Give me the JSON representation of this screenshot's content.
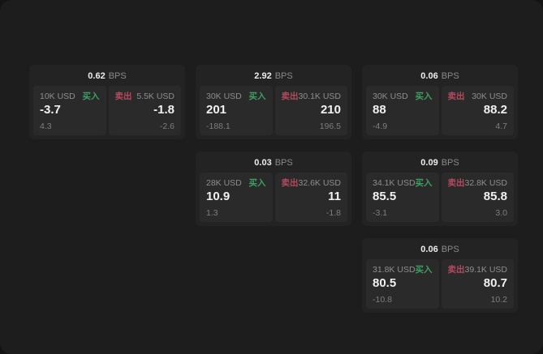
{
  "labels": {
    "buy": "买入",
    "sell": "卖出",
    "bps_unit": "BPS"
  },
  "colors": {
    "buy_accent": "#3f9e63",
    "sell_accent": "#b54a5e",
    "window_bg": "#1d1d1d",
    "card_bg": "#232323",
    "tile_bg": "#2a2a2b"
  },
  "cards": [
    {
      "row": 1,
      "col": 1,
      "bps": "0.62",
      "buy": {
        "amount": "10K USD",
        "price": "-3.7",
        "delta": "4.3"
      },
      "sell": {
        "amount": "5.5K USD",
        "price": "-1.8",
        "delta": "-2.6"
      }
    },
    {
      "row": 1,
      "col": 2,
      "bps": "2.92",
      "buy": {
        "amount": "30K USD",
        "price": "201",
        "delta": "-188.1"
      },
      "sell": {
        "amount": "30.1K USD",
        "price": "210",
        "delta": "196.5"
      }
    },
    {
      "row": 1,
      "col": 3,
      "bps": "0.06",
      "buy": {
        "amount": "30K USD",
        "price": "88",
        "delta": "-4.9"
      },
      "sell": {
        "amount": "30K USD",
        "price": "88.2",
        "delta": "4.7"
      }
    },
    {
      "row": 2,
      "col": 2,
      "bps": "0.03",
      "buy": {
        "amount": "28K USD",
        "price": "10.9",
        "delta": "1.3"
      },
      "sell": {
        "amount": "32.6K USD",
        "price": "11",
        "delta": "-1.8"
      }
    },
    {
      "row": 2,
      "col": 3,
      "bps": "0.09",
      "buy": {
        "amount": "34.1K USD",
        "price": "85.5",
        "delta": "-3.1"
      },
      "sell": {
        "amount": "32.8K USD",
        "price": "85.8",
        "delta": "3.0"
      }
    },
    {
      "row": 3,
      "col": 3,
      "bps": "0.06",
      "buy": {
        "amount": "31.8K USD",
        "price": "80.5",
        "delta": "-10.8"
      },
      "sell": {
        "amount": "39.1K USD",
        "price": "80.7",
        "delta": "10.2"
      }
    }
  ]
}
